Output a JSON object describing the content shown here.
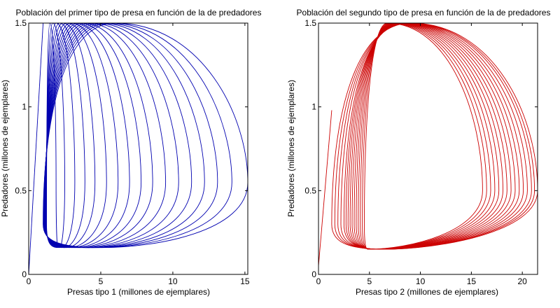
{
  "chart_data": [
    {
      "type": "line",
      "title": "Población del primer tipo de presa en  función de la de predadores",
      "xlabel": "Presas tipo 1 (millones de ejemplares)",
      "ylabel": "Predadores (millones de ejemplares)",
      "xlim": [
        0,
        15.2
      ],
      "ylim": [
        0,
        1.5
      ],
      "xticks": [
        "0",
        "5",
        "10",
        "15"
      ],
      "yticks": [
        "0",
        "0.5",
        "1",
        "1.5"
      ],
      "grid": false,
      "color": "#0000b0",
      "start_point": [
        0,
        0
      ],
      "loops": {
        "x_min": 1.0,
        "y_min": 0.16,
        "y_max": 1.5,
        "x_max": [
          15.2,
          14.1,
          13.1,
          12.2,
          11.3,
          10.4,
          9.5,
          8.6,
          7.8,
          7.0,
          6.2,
          5.4,
          4.6,
          3.9,
          3.2,
          2.5,
          1.9
        ]
      }
    },
    {
      "type": "line",
      "title": "Población del segundo tipo de presa en función de la de predadores",
      "xlabel": "Presas tipo 2 (millones de ejemplares)",
      "ylabel": "Predadores (millones de ejemplares)",
      "xlim": [
        0,
        21.5
      ],
      "ylim": [
        0,
        1.5
      ],
      "xticks": [
        "0",
        "5",
        "10",
        "15",
        "20"
      ],
      "yticks": [
        "0",
        "0.5",
        "1",
        "1.5"
      ],
      "grid": false,
      "color": "#cc0000",
      "start_point": [
        0,
        0.05
      ],
      "loops": {
        "x_min": [
          1.3,
          1.6,
          1.9,
          2.2,
          2.5,
          2.7,
          2.9,
          3.1,
          3.3,
          3.5,
          3.7,
          3.9,
          4.1,
          4.3,
          4.5
        ],
        "y_min": 0.15,
        "y_max": 1.5,
        "x_max": [
          21.5,
          21.2,
          20.9,
          20.5,
          20.1,
          19.7,
          19.3,
          18.9,
          18.5,
          18.1,
          17.7,
          17.3,
          16.9,
          16.5,
          16.1
        ]
      }
    }
  ]
}
